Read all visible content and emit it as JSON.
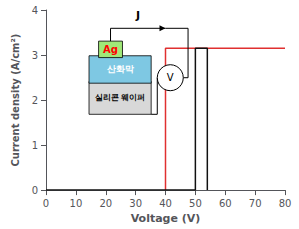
{
  "chart_data": {
    "type": "line",
    "xlabel": "Voltage (V)",
    "ylabel": "Current density (A/cm²)",
    "xlim": [
      0,
      80
    ],
    "ylim": [
      0,
      4
    ],
    "xticks": [
      0,
      10,
      20,
      30,
      40,
      50,
      60,
      70,
      80
    ],
    "yticks": [
      0,
      1,
      2,
      3,
      4
    ],
    "grid": false,
    "series": [
      {
        "color": "#e03030",
        "x": [
          40,
          40,
          80
        ],
        "values": [
          0,
          3.15,
          3.15
        ]
      },
      {
        "color": "#111111",
        "x": [
          0,
          50,
          50,
          54,
          54
        ],
        "values": [
          0,
          0,
          3.15,
          3.15,
          0
        ]
      }
    ],
    "annotations": [
      "Ag",
      "산화막",
      "실리콘 웨이퍼",
      "J",
      "V"
    ]
  }
}
